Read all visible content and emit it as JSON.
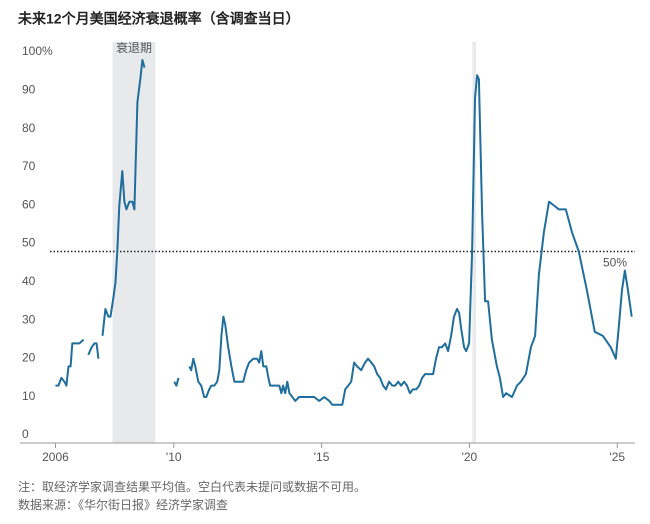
{
  "chart_data": {
    "type": "line",
    "title": "未来12个月美国经济衰退概率（含调查当日）",
    "notes": [
      "注：取经济学家调查结果平均值。空白代表未提问或数据不可用。",
      "数据来源：《华尔街日报》经济学家调查"
    ],
    "xlim": [
      2004.8,
      2025.6
    ],
    "xticks": [
      2006,
      {
        "value": 2010,
        "label": "'10"
      },
      {
        "value": 2015,
        "label": "'15"
      },
      {
        "value": 2020,
        "label": "'20"
      },
      {
        "value": 2025,
        "label": "'25"
      }
    ],
    "ylim": [
      0,
      100
    ],
    "yticks": [
      0,
      10,
      20,
      30,
      40,
      50,
      60,
      70,
      80,
      90,
      {
        "value": 100,
        "label": "100%"
      }
    ],
    "grid": false,
    "reference_line": {
      "value": 50,
      "label": "50%"
    },
    "shaded_periods": [
      {
        "label": "衰退期",
        "range": [
          2007.93,
          2009.38
        ]
      },
      {
        "range": [
          2020.1,
          2020.22
        ]
      }
    ],
    "series": [
      {
        "color": "#1f6e9c",
        "x": [
          2006.0,
          2006.1,
          2006.2,
          2006.3,
          2006.37,
          2006.44,
          2006.51,
          2006.57,
          2006.71,
          2006.81,
          2006.95,
          2007.03,
          2007.11,
          2007.22,
          2007.32,
          2007.39,
          2007.45,
          2007.52,
          2007.59,
          2007.69,
          2007.79,
          2007.86,
          2007.96,
          2008.03,
          2008.09,
          2008.16,
          2008.26,
          2008.33,
          2008.4,
          2008.5,
          2008.6,
          2008.67,
          2008.77,
          2008.87,
          2008.94,
          2009.01,
          2009.5,
          2010.02,
          2010.09,
          2010.16,
          2010.35,
          2010.53,
          2010.59,
          2010.66,
          2010.73,
          2010.83,
          2010.93,
          2011.03,
          2011.1,
          2011.2,
          2011.27,
          2011.37,
          2011.47,
          2011.54,
          2011.61,
          2011.68,
          2011.74,
          2011.84,
          2011.95,
          2012.05,
          2012.22,
          2012.35,
          2012.45,
          2012.55,
          2012.69,
          2012.82,
          2012.89,
          2012.96,
          2013.03,
          2013.13,
          2013.2,
          2013.26,
          2013.43,
          2013.57,
          2013.64,
          2013.7,
          2013.77,
          2013.84,
          2013.91,
          2014.01,
          2014.11,
          2014.24,
          2014.41,
          2014.58,
          2014.75,
          2014.92,
          2015.09,
          2015.26,
          2015.36,
          2015.53,
          2015.7,
          2015.8,
          2015.9,
          2016.0,
          2016.1,
          2016.2,
          2016.34,
          2016.47,
          2016.57,
          2016.68,
          2016.78,
          2016.88,
          2016.98,
          2017.08,
          2017.18,
          2017.28,
          2017.39,
          2017.49,
          2017.59,
          2017.69,
          2017.79,
          2017.89,
          2017.99,
          2018.09,
          2018.2,
          2018.3,
          2018.4,
          2018.5,
          2018.64,
          2018.77,
          2018.87,
          2018.97,
          2019.07,
          2019.18,
          2019.28,
          2019.38,
          2019.48,
          2019.58,
          2019.65,
          2019.72,
          2019.82,
          2019.89,
          2019.99,
          2020.09,
          2020.19,
          2020.26,
          2020.32,
          2020.43,
          2020.53,
          2020.63,
          2020.76,
          2020.93,
          2021.03,
          2021.14,
          2021.24,
          2021.44,
          2021.61,
          2021.74,
          2021.91,
          2022.08,
          2022.22,
          2022.35,
          2022.52,
          2022.69,
          2022.86,
          2023.03,
          2023.26,
          2023.47,
          2023.7,
          2023.97,
          2024.24,
          2024.51,
          2024.78,
          2024.95,
          2025.05,
          2025.16,
          2025.26,
          2025.36,
          2025.49
        ],
        "values": [
          15,
          15,
          17,
          16,
          15,
          20,
          20,
          26,
          26,
          26,
          27,
          null,
          23,
          25,
          26,
          26,
          22,
          null,
          28,
          35,
          33,
          33,
          38,
          42,
          50,
          62,
          71,
          63,
          61,
          63,
          63,
          61,
          89,
          95,
          100,
          98,
          null,
          16,
          15,
          17,
          null,
          20,
          19,
          22,
          20,
          16,
          15,
          12,
          12,
          14,
          15,
          15,
          16,
          19,
          28,
          33,
          31,
          25,
          20,
          16,
          16,
          16,
          19,
          21,
          22,
          22,
          21,
          24,
          20,
          20,
          17,
          15,
          15,
          15,
          13,
          15,
          13,
          16,
          13,
          12,
          11,
          12,
          12,
          12,
          12,
          11,
          12,
          11,
          10,
          10,
          10,
          14,
          15,
          16,
          21,
          20,
          19,
          21,
          22,
          21,
          20,
          18,
          17,
          15,
          14,
          16,
          15,
          15,
          16,
          15,
          16,
          15,
          13,
          14,
          14,
          15,
          17,
          18,
          18,
          18,
          22,
          25,
          25,
          26,
          24,
          28,
          33,
          35,
          34,
          30,
          25,
          24,
          26,
          50,
          90,
          96,
          95,
          60,
          37,
          37,
          27,
          20,
          17,
          12,
          13,
          12,
          15,
          16,
          18,
          25,
          28,
          44,
          55,
          63,
          62,
          61,
          61,
          55,
          50,
          40,
          29,
          28,
          25,
          22,
          30,
          40,
          45,
          40,
          33
        ]
      }
    ]
  }
}
